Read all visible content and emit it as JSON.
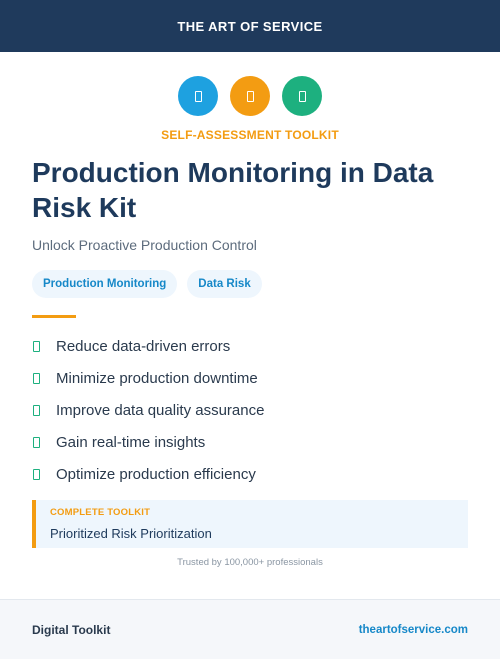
{
  "header": {
    "brand": "THE ART OF SERVICE"
  },
  "icons": [
    {
      "name": "square-icon",
      "color": "#1ea1e0"
    },
    {
      "name": "square-icon",
      "color": "#f39c12"
    },
    {
      "name": "square-icon",
      "color": "#1db07f"
    }
  ],
  "kicker": "SELF-ASSESSMENT TOOLKIT",
  "title": "Production Monitoring in Data Risk Kit",
  "subtitle": "Unlock Proactive Production Control",
  "tags": [
    "Production Monitoring",
    "Data Risk"
  ],
  "benefits": [
    "Reduce data-driven errors",
    "Minimize production downtime",
    "Improve data quality assurance",
    "Gain real-time insights",
    "Optimize production efficiency"
  ],
  "callout": {
    "label": "COMPLETE TOOLKIT",
    "text": "Prioritized Risk Prioritization"
  },
  "trusted": "Trusted by 100,000+ professionals",
  "footer": {
    "left": "Digital Toolkit",
    "right": "theartofservice.com"
  },
  "colors": {
    "navy": "#1f3a5c",
    "accent_orange": "#f39c12",
    "accent_blue": "#1688c8",
    "accent_green": "#1db07f"
  }
}
